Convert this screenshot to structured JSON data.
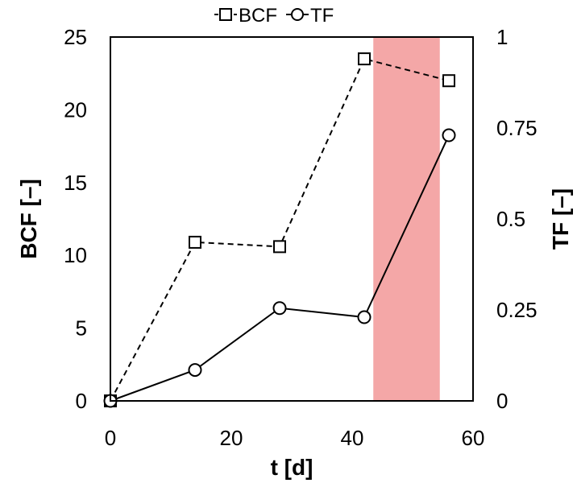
{
  "chart_data": {
    "type": "line",
    "x": [
      0,
      14,
      28,
      42,
      56
    ],
    "xlabel": "t [d]",
    "ylabel": "BCF [–]",
    "y2label": "TF [–]",
    "xlim": [
      0,
      60
    ],
    "ylim": [
      0,
      25
    ],
    "y2lim": [
      0,
      1
    ],
    "xticks": [
      "0",
      "20",
      "40",
      "60"
    ],
    "yticks": [
      "0",
      "5",
      "10",
      "15",
      "20",
      "25"
    ],
    "y2ticks": [
      "0",
      "0.25",
      "0.5",
      "0.75",
      "1"
    ],
    "grid": false,
    "legend_position": "top",
    "series": [
      {
        "name": "BCF",
        "axis": "left",
        "values": [
          0,
          10.9,
          10.6,
          23.5,
          22.0
        ],
        "marker": "square",
        "line_style": "dashed",
        "color": "#000000"
      },
      {
        "name": "TF",
        "axis": "right",
        "values": [
          0,
          0.085,
          0.255,
          0.23,
          0.73
        ],
        "marker": "circle",
        "line_style": "solid",
        "color": "#000000"
      }
    ],
    "shaded_region": {
      "x_start": 43.5,
      "x_end": 54.5,
      "color": "#f4a7a7"
    }
  }
}
